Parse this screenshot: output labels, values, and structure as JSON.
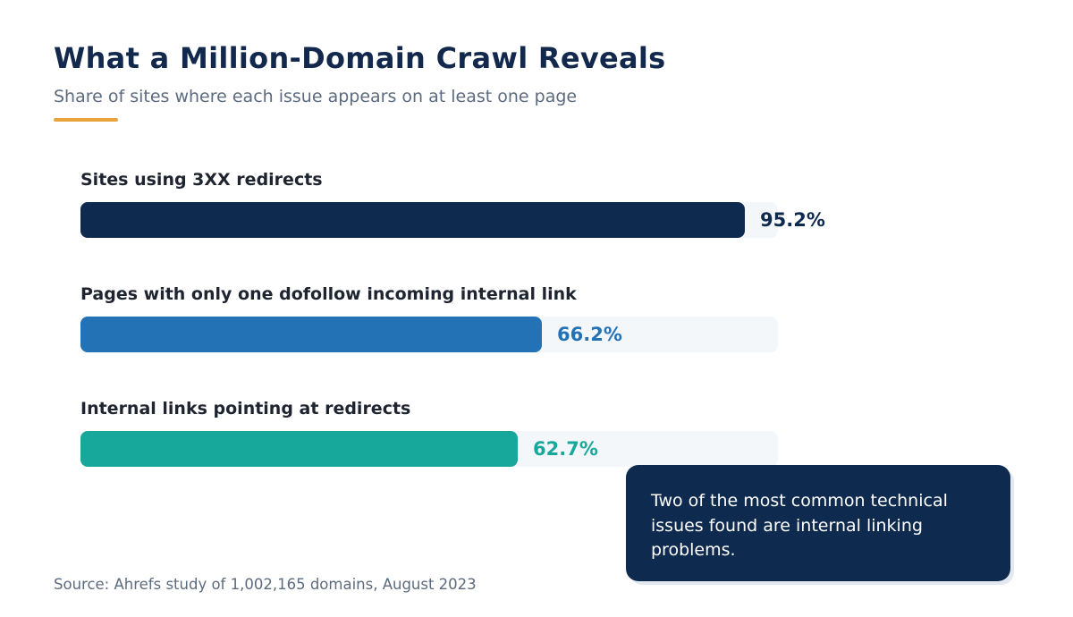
{
  "header": {
    "title": "What a Million-Domain Crawl Reveals",
    "subtitle": "Share of sites where each issue appears on at least one page"
  },
  "colors": {
    "accent": "#e8a33d",
    "title": "#12294d",
    "track": "#f4f7fa",
    "callout_bg": "#0f2a4f"
  },
  "chart_data": {
    "type": "bar",
    "orientation": "horizontal",
    "title": "What a Million-Domain Crawl Reveals",
    "subtitle": "Share of sites where each issue appears on at least one page",
    "xlim": [
      0,
      100
    ],
    "grid": false,
    "categories": [
      "Sites using 3XX redirects",
      "Pages with only one dofollow incoming internal link",
      "Internal links pointing at redirects"
    ],
    "values": [
      95.2,
      66.2,
      62.7
    ],
    "value_labels": [
      "95.2%",
      "66.2%",
      "62.7%"
    ],
    "bar_colors": [
      "#0f2a4f",
      "#2272b5",
      "#17a89b"
    ]
  },
  "callout": {
    "text": "Two of the most common technical issues found are internal linking problems."
  },
  "footer": {
    "source": "Source: Ahrefs study of 1,002,165 domains, August 2023"
  }
}
